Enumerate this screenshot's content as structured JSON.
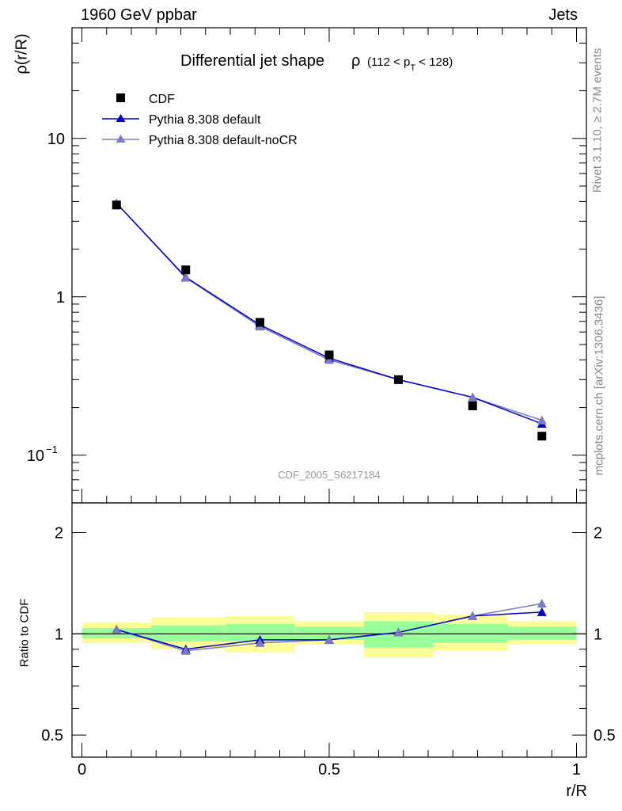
{
  "header": {
    "left": "1960 GeV ppbar",
    "right": "Jets"
  },
  "side_text": {
    "rivet": "Rivet 3.1.10, ≥ 2.7M events",
    "mcplots": "mcplots.cern.ch [arXiv:1306.3436]"
  },
  "chart_data": [
    {
      "type": "line",
      "title_main": "Differential jet shape",
      "title_rho": "ρ",
      "title_range": [
        "(112 < p",
        "T",
        " < 128)"
      ],
      "ylabel": "ρ(r/R)",
      "ylog": true,
      "ylim": [
        0.05,
        50
      ],
      "xlim": [
        -0.02,
        1.02
      ],
      "yticks": [
        {
          "value": 10,
          "label": "10"
        },
        {
          "value": 1,
          "label": "1"
        },
        {
          "value": 0.1,
          "base": "10",
          "exp": "−1"
        }
      ],
      "watermark": "CDF_2005_S6217184",
      "legend": {
        "placement": "top-left"
      },
      "x": [
        0.07,
        0.21,
        0.36,
        0.5,
        0.64,
        0.79,
        0.93
      ],
      "series": [
        {
          "name": "CDF",
          "marker": "square",
          "color": "#000000",
          "values": [
            3.8,
            1.48,
            0.69,
            0.43,
            0.3,
            0.205,
            0.132
          ]
        },
        {
          "name": "Pythia 8.308 default",
          "marker": "triangle",
          "color": "#0000cc",
          "values": [
            3.9,
            1.33,
            0.665,
            0.41,
            0.3,
            0.232,
            0.158
          ]
        },
        {
          "name": "Pythia 8.308 default-noCR",
          "marker": "triangle",
          "color": "#7b7bbf",
          "values": [
            3.9,
            1.32,
            0.65,
            0.4,
            0.3,
            0.232,
            0.166
          ]
        }
      ]
    },
    {
      "type": "line",
      "ylabel": "Ratio to CDF",
      "ylog": true,
      "ylim": [
        0.43,
        2.45
      ],
      "xlim": [
        -0.02,
        1.02
      ],
      "xlabel": "r/R",
      "xticks": [
        {
          "value": 0,
          "label": "0"
        },
        {
          "value": 0.5,
          "label": "0.5"
        },
        {
          "value": 1,
          "label": "1"
        }
      ],
      "yticks": [
        {
          "value": 2,
          "label": "2"
        },
        {
          "value": 1,
          "label": "1"
        },
        {
          "value": 0.5,
          "label": "0.5"
        }
      ],
      "bins": [
        [
          0,
          0.14
        ],
        [
          0.14,
          0.29
        ],
        [
          0.29,
          0.43
        ],
        [
          0.43,
          0.57
        ],
        [
          0.57,
          0.71
        ],
        [
          0.71,
          0.86
        ],
        [
          0.86,
          1
        ]
      ],
      "bands": {
        "total": [
          [
            0.94,
            1.08
          ],
          [
            0.9,
            1.12
          ],
          [
            0.88,
            1.13
          ],
          [
            0.93,
            1.09
          ],
          [
            0.85,
            1.16
          ],
          [
            0.89,
            1.14
          ],
          [
            0.93,
            1.09
          ]
        ],
        "stat": [
          [
            0.97,
            1.04
          ],
          [
            0.95,
            1.06
          ],
          [
            0.95,
            1.07
          ],
          [
            0.96,
            1.05
          ],
          [
            0.91,
            1.09
          ],
          [
            0.94,
            1.07
          ],
          [
            0.96,
            1.05
          ]
        ],
        "colors": {
          "total": "#ffff99",
          "stat": "#99ff99"
        }
      },
      "x": [
        0.07,
        0.21,
        0.36,
        0.5,
        0.64,
        0.79,
        0.93
      ],
      "series": [
        {
          "name": "Pythia 8.308 default",
          "color": "#0000cc",
          "values": [
            1.03,
            0.9,
            0.96,
            0.96,
            1.01,
            1.13,
            1.16
          ]
        },
        {
          "name": "Pythia 8.308 default-noCR",
          "color": "#7b7bbf",
          "values": [
            1.03,
            0.89,
            0.94,
            0.96,
            1.01,
            1.13,
            1.23
          ]
        }
      ]
    }
  ]
}
